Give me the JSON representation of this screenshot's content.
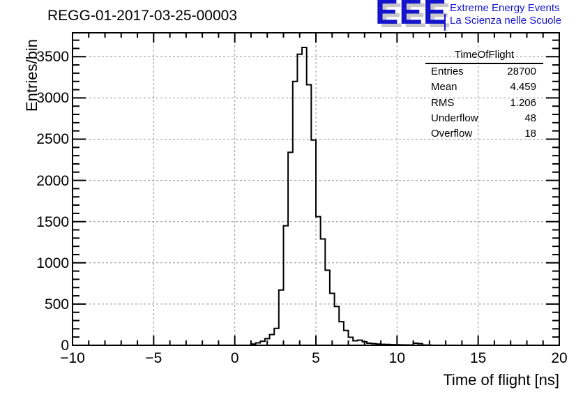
{
  "title": "REGG-01-2017-03-25-00003",
  "logo": {
    "acronym": "EEE",
    "line1": "Extreme Energy Events",
    "line2": "La Scienza nelle Scuole",
    "color": "#1414cc",
    "shadow_color": "#c8c8c8"
  },
  "stats": {
    "title": "TimeOfFlight",
    "rows": [
      {
        "label": "Entries",
        "value": "28700"
      },
      {
        "label": "Mean",
        "value": "4.459"
      },
      {
        "label": "RMS",
        "value": "1.206"
      },
      {
        "label": "Underflow",
        "value": "48"
      },
      {
        "label": "Overflow",
        "value": "18"
      }
    ]
  },
  "chart_data": {
    "type": "bar",
    "title": "REGG-01-2017-03-25-00003",
    "xlabel": "Time of flight [ns]",
    "ylabel": "Entries/bin",
    "xlim": [
      -10,
      20
    ],
    "ylim": [
      0,
      3790
    ],
    "x_major_ticks": [
      -10,
      -5,
      0,
      5,
      10,
      15,
      20
    ],
    "x_minor_step": 1,
    "y_major_ticks": [
      0,
      500,
      1000,
      1500,
      2000,
      2500,
      3000,
      3500
    ],
    "y_minor_step": 100,
    "grid": true,
    "grid_color": "#949494",
    "line_color": "#000000",
    "histogram": {
      "x_start": 1.0,
      "bin_width": 0.2857,
      "values": [
        15,
        30,
        48,
        80,
        130,
        205,
        670,
        1450,
        2340,
        3200,
        3530,
        3612,
        3160,
        2490,
        1560,
        1290,
        910,
        630,
        470,
        287,
        180,
        97,
        55,
        63,
        42,
        25,
        20,
        15,
        12,
        10,
        8,
        6,
        5,
        4,
        3,
        25,
        20,
        3,
        2
      ]
    }
  }
}
